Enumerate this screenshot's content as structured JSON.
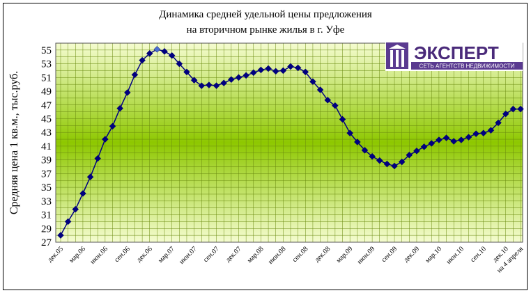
{
  "chart_data": {
    "type": "line",
    "title_line1": "Динамика средней удельной цены предложения",
    "title_line2": "на вторичном рынке жилья в г. Уфе",
    "ylabel": "Средняя цена 1 кв.м., тыс.руб.",
    "xlabel": "",
    "ylim": [
      27,
      56
    ],
    "yticks": [
      27,
      29,
      31,
      33,
      35,
      37,
      39,
      41,
      43,
      45,
      47,
      49,
      51,
      53,
      55
    ],
    "grid": true,
    "xtick_labels": [
      "дек.05",
      "мар.06",
      "июн.06",
      "сен.06",
      "дек.06",
      "мар.07",
      "июн.07",
      "сен.07",
      "дек.07",
      "мар.08",
      "июн.08",
      "сен.08",
      "дек.08",
      "мар.09",
      "июн.09",
      "сен.09",
      "дек.09",
      "мар.10",
      "июн.10",
      "сен.10",
      "дек.10",
      "на 4 апреля"
    ],
    "series": [
      {
        "color": "#000080",
        "values": [
          28.0,
          30.0,
          31.8,
          34.1,
          36.5,
          39.2,
          42.0,
          43.9,
          46.5,
          48.8,
          51.4,
          53.5,
          54.5,
          55.1,
          54.8,
          54.2,
          53.0,
          51.8,
          50.6,
          49.8,
          49.9,
          49.8,
          50.2,
          50.7,
          51.0,
          51.3,
          51.7,
          52.1,
          52.3,
          51.9,
          52.0,
          52.6,
          52.4,
          51.8,
          50.4,
          49.2,
          47.7,
          46.9,
          44.9,
          42.9,
          41.6,
          40.4,
          39.5,
          38.9,
          38.4,
          38.1,
          38.7,
          39.7,
          40.3,
          40.9,
          41.4,
          41.9,
          42.2,
          41.7,
          41.9,
          42.3,
          42.8,
          42.9,
          43.3,
          44.4,
          45.7,
          46.4,
          46.4
        ]
      }
    ]
  },
  "logo": {
    "name": "ЭКСПЕРТ",
    "tagline": "СЕТЬ АГЕНТСТВ НЕДВИЖИМОСТИ"
  },
  "colors": {
    "plot_light": "#f2fbc8",
    "plot_dark": "#8ec800",
    "line": "#000080",
    "marker": "#000080",
    "highlight_marker": "#4a6fd0"
  }
}
